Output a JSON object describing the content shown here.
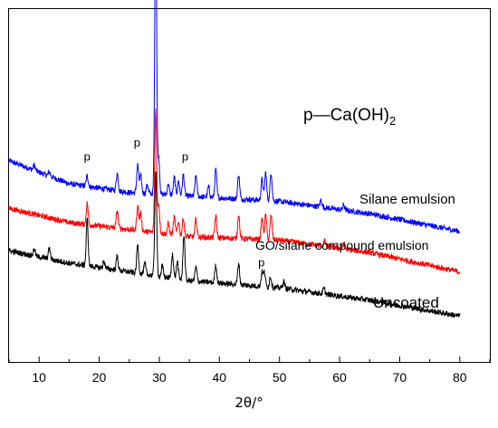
{
  "chart_data": {
    "type": "line",
    "title": "",
    "xlabel": "2θ/°",
    "ylabel": "",
    "xlim": [
      5,
      85
    ],
    "ylim": [
      0,
      100
    ],
    "x_ticks": [
      10,
      20,
      30,
      40,
      50,
      60,
      70,
      80
    ],
    "grid": false,
    "y_tick_labels": false,
    "legend_text": "p—Ca(OH)",
    "legend_subscript": "2",
    "series": [
      {
        "name": "Silane emulsion",
        "color": "#0000ff",
        "x_range": [
          5,
          80
        ],
        "baseline": [
          [
            5,
            57
          ],
          [
            15,
            50.5
          ],
          [
            25,
            48
          ],
          [
            35,
            47
          ],
          [
            50,
            45.5
          ],
          [
            65,
            42
          ],
          [
            80,
            37
          ]
        ],
        "noise": 0.8,
        "peaks": [
          [
            9.2,
            1.5
          ],
          [
            11.7,
            1.2
          ],
          [
            18.0,
            3
          ],
          [
            23.0,
            5
          ],
          [
            26.4,
            8
          ],
          [
            26.9,
            5
          ],
          [
            28.0,
            2.5
          ],
          [
            29.4,
            80
          ],
          [
            29.9,
            10
          ],
          [
            31.5,
            3
          ],
          [
            32.5,
            5
          ],
          [
            33.2,
            4
          ],
          [
            34.0,
            6
          ],
          [
            36.1,
            6
          ],
          [
            38.2,
            3
          ],
          [
            39.4,
            8
          ],
          [
            43.2,
            7
          ],
          [
            47.1,
            6
          ],
          [
            47.7,
            8
          ],
          [
            48.6,
            8
          ],
          [
            56.9,
            2
          ],
          [
            60.7,
            1.5
          ]
        ],
        "label": "Silane emulsion"
      },
      {
        "name": "GO/silane compound emulsion",
        "color": "#ff0000",
        "x_range": [
          5,
          80
        ],
        "baseline": [
          [
            5,
            43.5
          ],
          [
            15,
            39.5
          ],
          [
            25,
            37.5
          ],
          [
            35,
            35.5
          ],
          [
            50,
            34.5
          ],
          [
            65,
            31
          ],
          [
            80,
            25.5
          ]
        ],
        "noise": 0.8,
        "peaks": [
          [
            18.0,
            6
          ],
          [
            23.0,
            5
          ],
          [
            26.4,
            7
          ],
          [
            26.9,
            5
          ],
          [
            29.4,
            35
          ],
          [
            29.9,
            8
          ],
          [
            31.5,
            3
          ],
          [
            32.5,
            5
          ],
          [
            33.2,
            4
          ],
          [
            34.0,
            5
          ],
          [
            36.1,
            5
          ],
          [
            39.4,
            6
          ],
          [
            43.2,
            7
          ],
          [
            47.1,
            6
          ],
          [
            47.7,
            7
          ],
          [
            48.6,
            7
          ],
          [
            57.5,
            1.5
          ],
          [
            60.7,
            1.5
          ]
        ],
        "label": "GO/silane compound emulsion"
      },
      {
        "name": "Uncoated",
        "color": "#000000",
        "x_range": [
          5,
          80
        ],
        "baseline": [
          [
            5,
            31.5
          ],
          [
            15,
            28
          ],
          [
            25,
            25.5
          ],
          [
            35,
            23
          ],
          [
            50,
            21
          ],
          [
            65,
            17.5
          ],
          [
            80,
            13
          ]
        ],
        "noise": 0.8,
        "peaks": [
          [
            9.2,
            2
          ],
          [
            11.7,
            3
          ],
          [
            18.0,
            13
          ],
          [
            20.8,
            2
          ],
          [
            23.0,
            4
          ],
          [
            26.4,
            8
          ],
          [
            27.6,
            3
          ],
          [
            29.4,
            30
          ],
          [
            30.5,
            3
          ],
          [
            32.2,
            7
          ],
          [
            33.0,
            5
          ],
          [
            34.1,
            13
          ],
          [
            36.1,
            4
          ],
          [
            39.4,
            5
          ],
          [
            43.2,
            6
          ],
          [
            47.1,
            4
          ],
          [
            47.5,
            4
          ],
          [
            48.5,
            3
          ],
          [
            50.7,
            2
          ],
          [
            57.4,
            1.5
          ]
        ],
        "label": "Uncoated"
      }
    ],
    "annotations": [
      {
        "text": "p",
        "x": 18.0,
        "y": 57
      },
      {
        "text": "p",
        "x": 26.3,
        "y": 61
      },
      {
        "text": "p",
        "x": 34.3,
        "y": 57
      },
      {
        "text": "p",
        "x": 47.0,
        "y": 27
      }
    ]
  }
}
